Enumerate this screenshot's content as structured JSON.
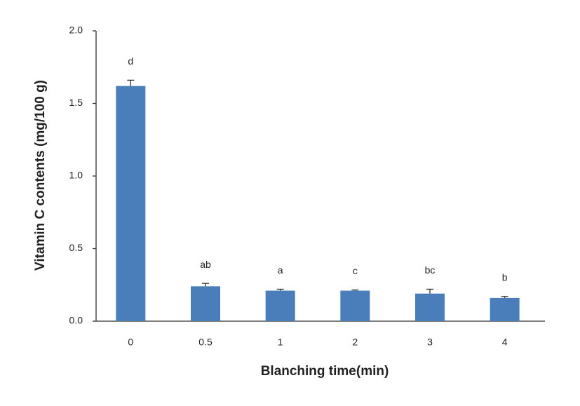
{
  "chart_data": {
    "type": "bar",
    "x_label": "Blanching time(min)",
    "y_label": "Vitamin C contents (mg/100 g)",
    "categories": [
      "0",
      "0.5",
      "1",
      "2",
      "3",
      "4"
    ],
    "values": [
      1.62,
      0.24,
      0.21,
      0.21,
      0.19,
      0.16
    ],
    "errors": [
      0.04,
      0.02,
      0.01,
      0.005,
      0.03,
      0.01
    ],
    "letters": [
      "d",
      "ab",
      "a",
      "c",
      "bc",
      "b"
    ],
    "color": "#4a7ebb",
    "ylim": [
      0,
      2
    ],
    "yticks": [
      {
        "value": 0,
        "label": "0.0"
      },
      {
        "value": 0.5,
        "label": "0.5"
      },
      {
        "value": 1,
        "label": "1.0"
      },
      {
        "value": 1.5,
        "label": "1.5"
      },
      {
        "value": 2,
        "label": "2.0"
      }
    ],
    "grid": false
  }
}
